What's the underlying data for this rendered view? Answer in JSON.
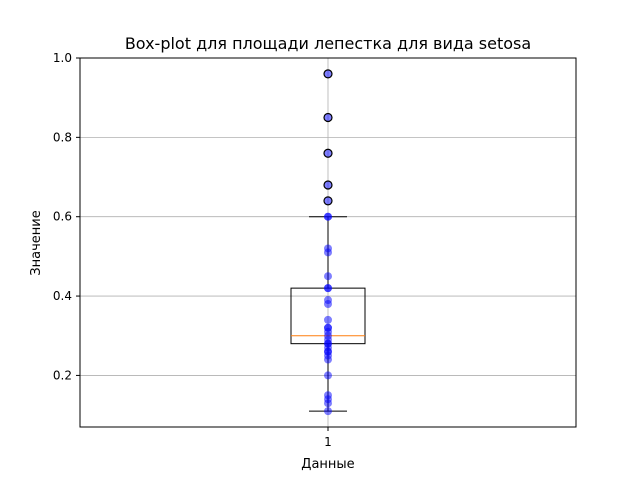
{
  "chart_data": {
    "type": "box",
    "title": "Box-plot для площади лепестка для вида  setosa",
    "xlabel": "Данные",
    "ylabel": "Значение",
    "x_ticks": [
      "1"
    ],
    "y_ticks": [
      "0.2",
      "0.4",
      "0.6",
      "0.8",
      "1.0"
    ],
    "ylim": [
      0.07,
      1.0
    ],
    "grid": true,
    "box": {
      "category": "1",
      "whisker_low": 0.11,
      "q1": 0.28,
      "median": 0.3,
      "q3": 0.42,
      "whisker_high": 0.6
    },
    "points": [
      0.96,
      0.85,
      0.76,
      0.68,
      0.64,
      0.6,
      0.6,
      0.52,
      0.51,
      0.45,
      0.42,
      0.42,
      0.39,
      0.38,
      0.34,
      0.32,
      0.32,
      0.31,
      0.3,
      0.29,
      0.28,
      0.28,
      0.27,
      0.26,
      0.26,
      0.25,
      0.24,
      0.2,
      0.15,
      0.14,
      0.13,
      0.11
    ],
    "outliers": [
      0.96,
      0.85,
      0.76,
      0.68,
      0.64
    ],
    "colors": {
      "box": "#000000",
      "median": "#ff7f0e",
      "points": "#0000ff",
      "grid": "#b0b0b0"
    }
  }
}
